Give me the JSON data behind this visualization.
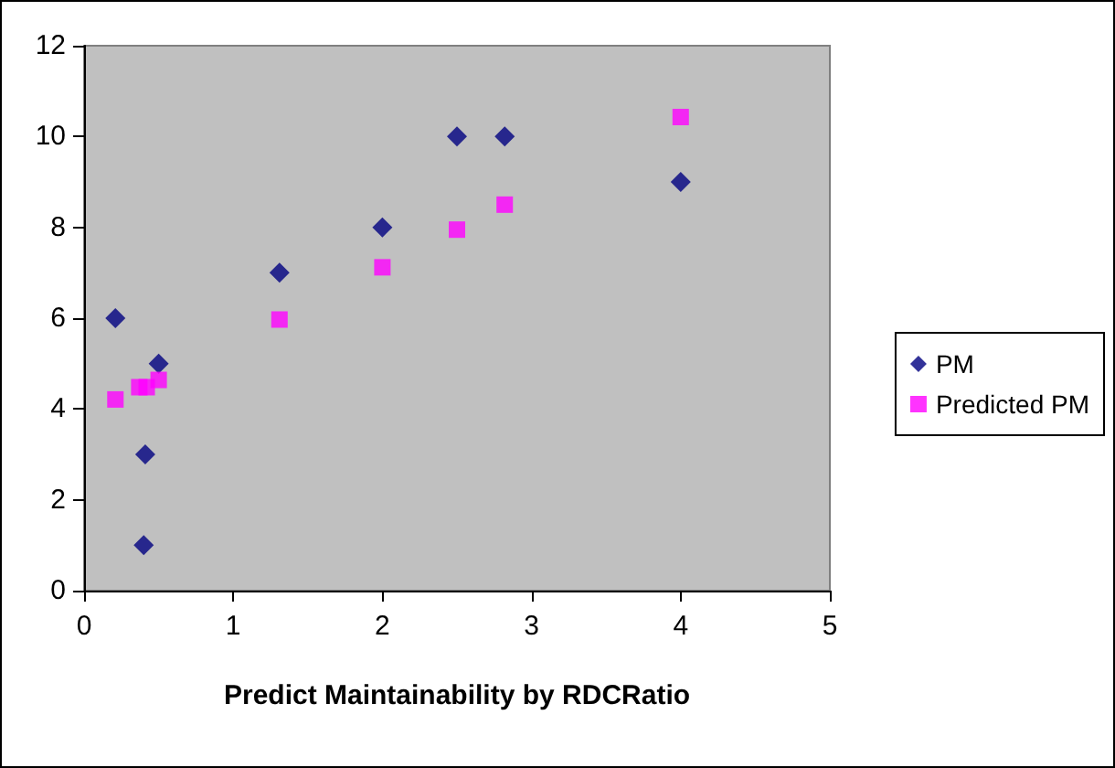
{
  "chart_data": {
    "type": "scatter",
    "xlabel": "Predict Maintainability by RDCRatio",
    "xlim": [
      0,
      5
    ],
    "xticks": [
      0,
      1,
      2,
      3,
      4,
      5
    ],
    "ylim": [
      0,
      12
    ],
    "yticks": [
      0,
      2,
      4,
      6,
      8,
      10,
      12
    ],
    "grid": false,
    "legend": "right",
    "series": [
      {
        "name": "PM",
        "color": "#000080",
        "marker": "diamond",
        "x": [
          0.21,
          0.41,
          0.4,
          0.5,
          1.31,
          2,
          2.5,
          2.82,
          4
        ],
        "values": [
          6,
          3,
          1,
          5,
          7,
          8,
          10,
          10,
          9
        ]
      },
      {
        "name": "Predicted PM",
        "color": "#ff00ff",
        "marker": "square",
        "x": [
          0.21,
          0.42,
          0.37,
          0.5,
          1.31,
          2,
          2.5,
          2.82,
          4
        ],
        "values": [
          4.21,
          4.48,
          4.48,
          4.64,
          5.97,
          7.12,
          7.95,
          8.5,
          10.43
        ]
      }
    ]
  }
}
